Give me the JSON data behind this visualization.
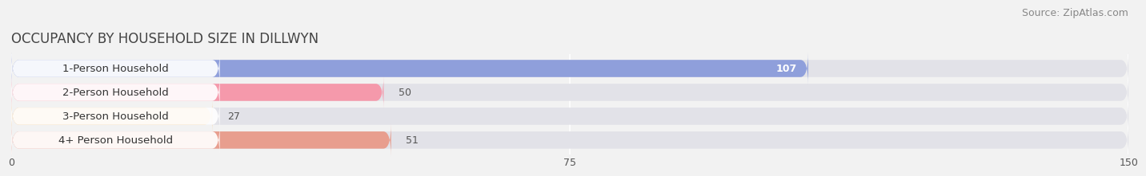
{
  "title": "OCCUPANCY BY HOUSEHOLD SIZE IN DILLWYN",
  "source": "Source: ZipAtlas.com",
  "categories": [
    "1-Person Household",
    "2-Person Household",
    "3-Person Household",
    "4+ Person Household"
  ],
  "values": [
    107,
    50,
    27,
    51
  ],
  "bar_colors": [
    "#8f9fdb",
    "#f599ab",
    "#f5ca8e",
    "#e89e8e"
  ],
  "bar_label_colors": [
    "white",
    "black",
    "black",
    "black"
  ],
  "xlim": [
    0,
    150
  ],
  "xticks": [
    0,
    75,
    150
  ],
  "background_color": "#f2f2f2",
  "bar_track_color": "#e2e2e8",
  "title_fontsize": 12,
  "source_fontsize": 9,
  "label_fontsize": 9.5,
  "value_fontsize": 9
}
